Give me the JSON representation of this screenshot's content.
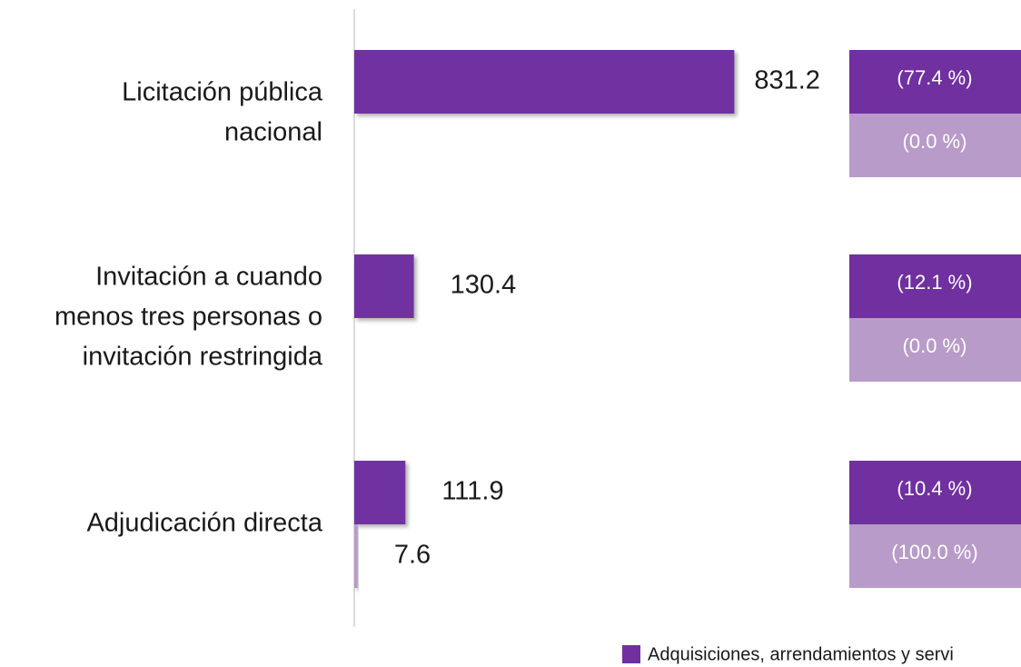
{
  "chart_data": {
    "type": "bar",
    "orientation": "horizontal",
    "categories": [
      [
        "Licitación pública",
        "nacional"
      ],
      [
        "Invitación a cuando",
        "menos tres personas o",
        "invitación restringida"
      ],
      [
        "Adjudicación directa"
      ]
    ],
    "series": [
      {
        "name": "Adquisiciones, arrendamientos y servi",
        "color": "#7030a0",
        "values": [
          831.2,
          130.4,
          111.9
        ],
        "shares": [
          77.4,
          12.1,
          10.4
        ],
        "share_labels": [
          "(77.4 %)",
          "(12.1 %)",
          "(10.4 %)"
        ]
      },
      {
        "color": "#b89bc9",
        "values": [
          0,
          0,
          7.6
        ],
        "value_labels": [
          null,
          null,
          "7.6"
        ],
        "shares": [
          0.0,
          0.0,
          100.0
        ],
        "share_labels": [
          "(0.0 %)",
          "(0.0 %)",
          "(100.0 %)"
        ]
      }
    ],
    "xlim": [
      0,
      900
    ]
  }
}
